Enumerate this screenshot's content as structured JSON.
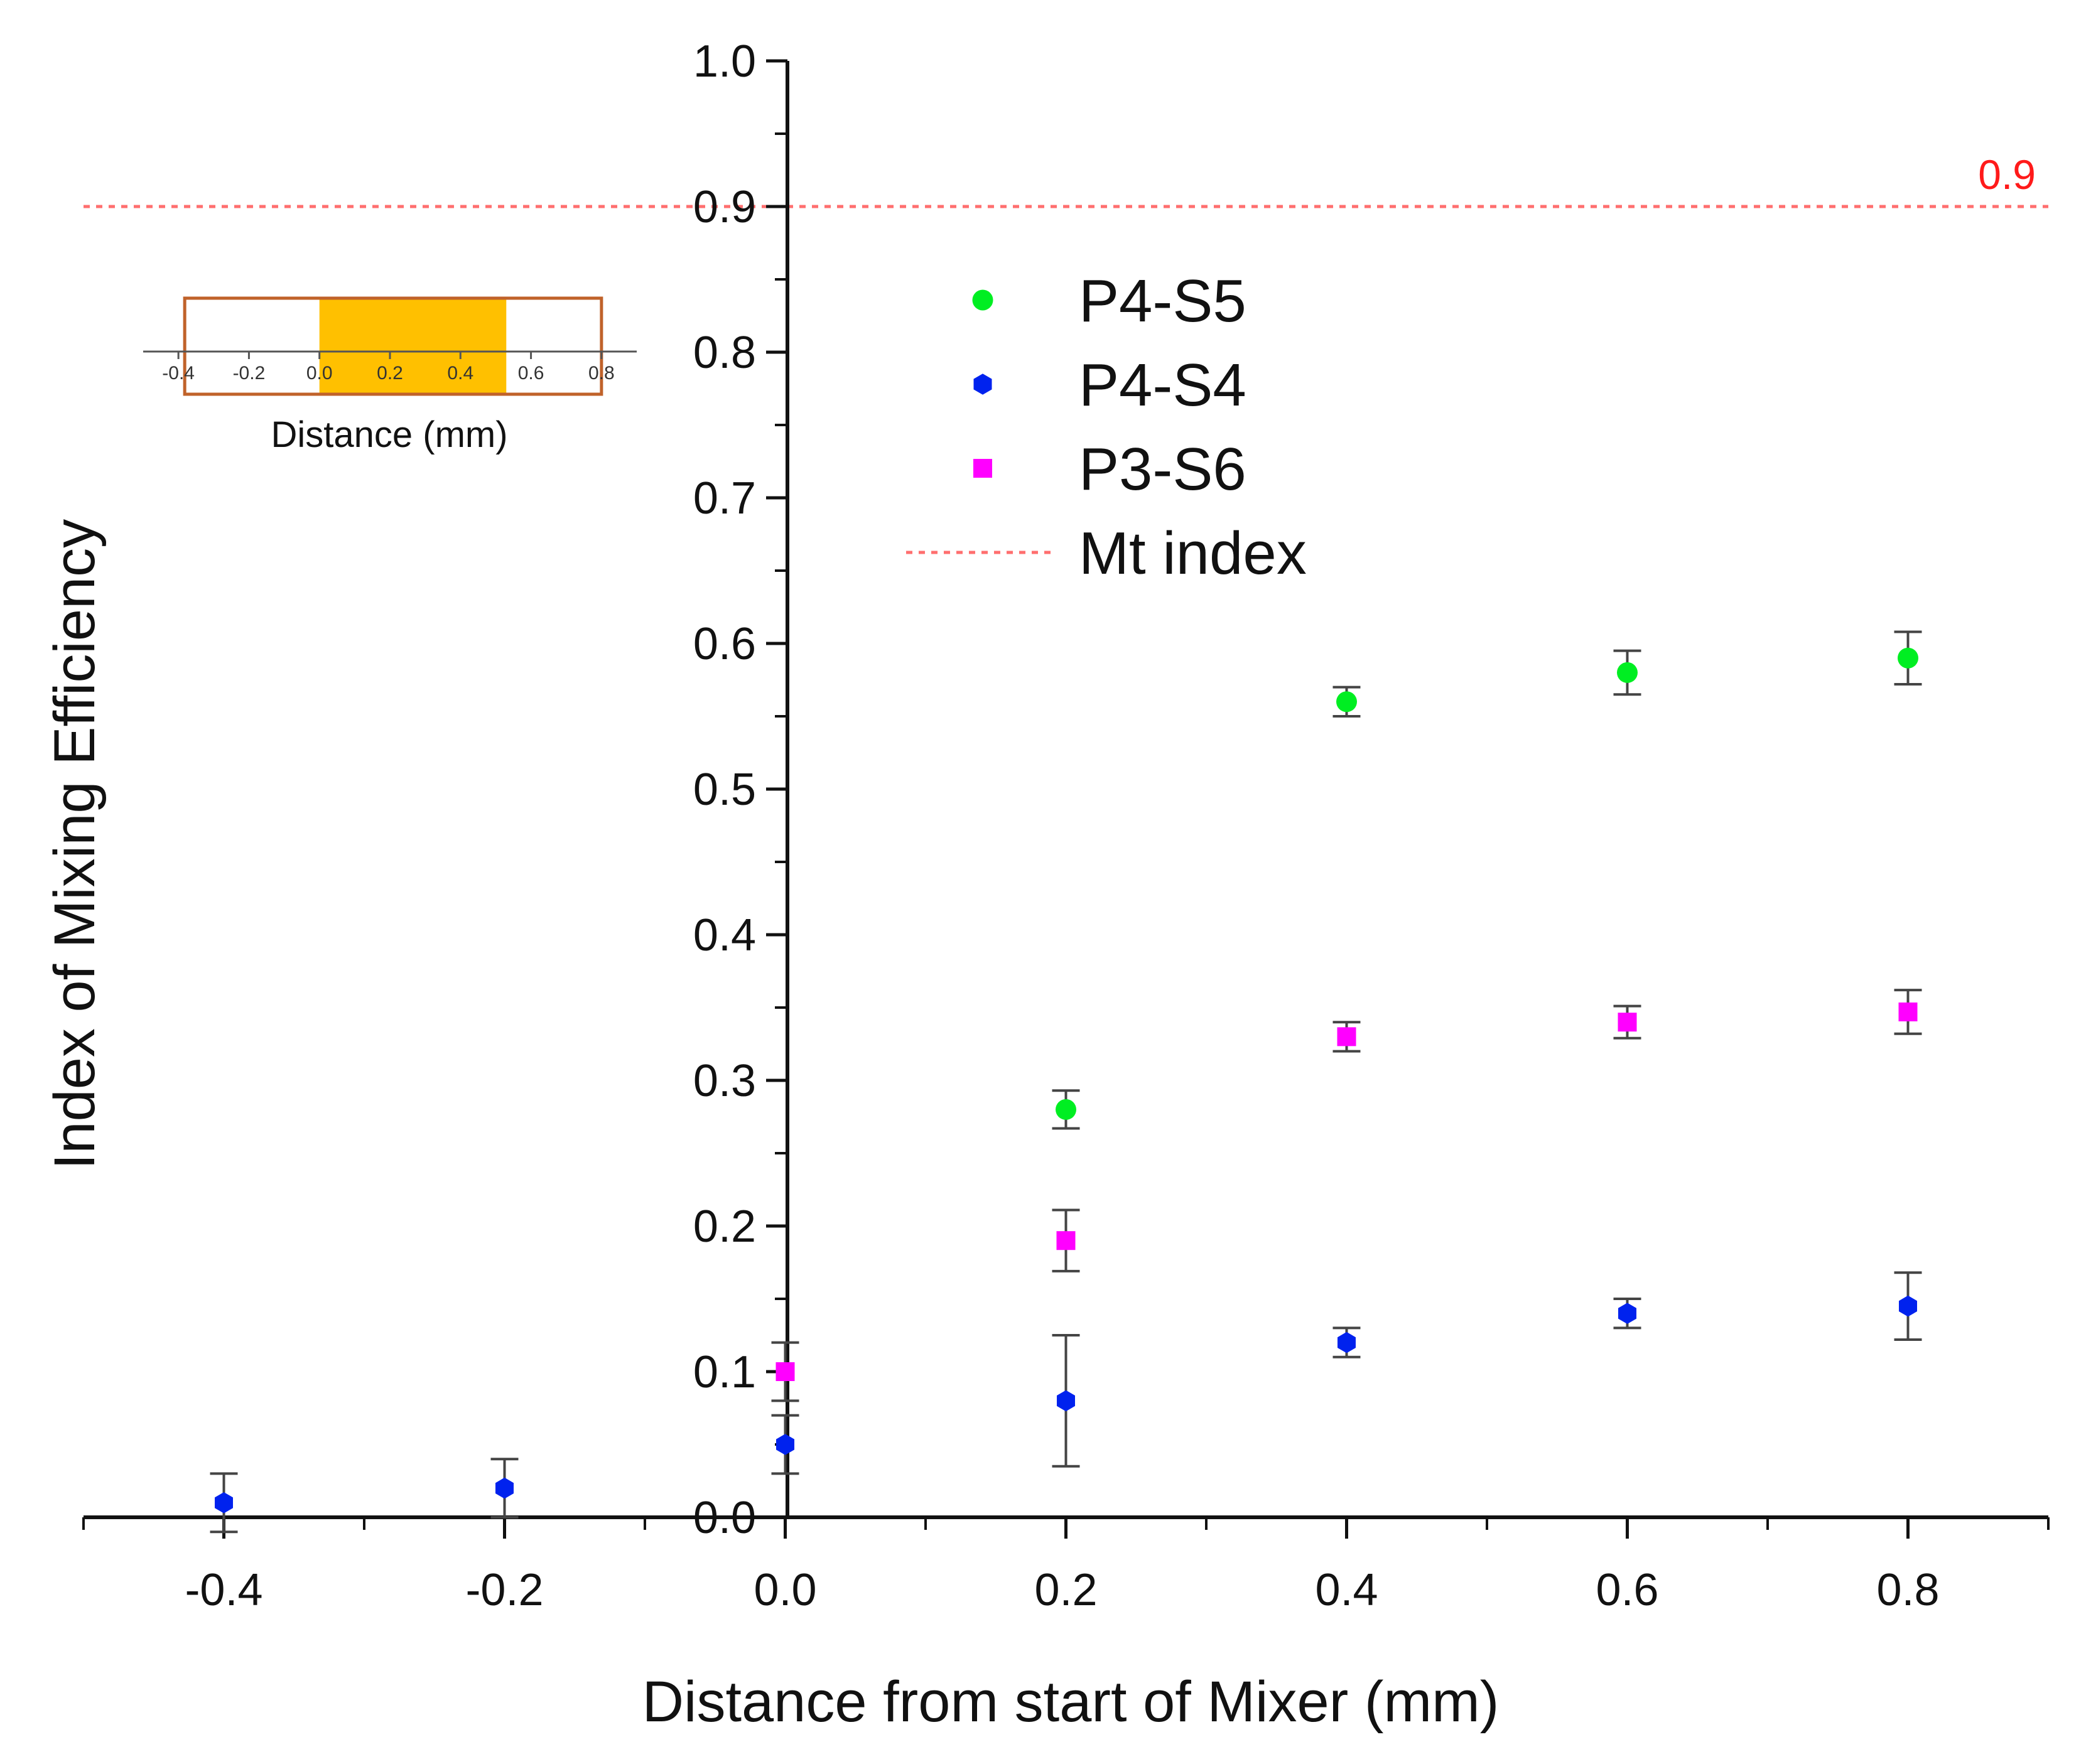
{
  "chart_data": {
    "type": "scatter",
    "title": "",
    "xlabel": "Distance from start of Mixer (mm)",
    "ylabel": "Index of Mixing Efficiency",
    "xlim": [
      -0.5,
      0.9
    ],
    "ylim": [
      0.0,
      1.0
    ],
    "x_ticks": [
      "-0.4",
      "-0.2",
      "0.0",
      "0.2",
      "0.4",
      "0.6",
      "0.8"
    ],
    "x_tick_values": [
      -0.4,
      -0.2,
      0.0,
      0.2,
      0.4,
      0.6,
      0.8
    ],
    "y_ticks": [
      "0.0",
      "0.1",
      "0.2",
      "0.3",
      "0.4",
      "0.5",
      "0.6",
      "0.7",
      "0.8",
      "0.9",
      "1.0"
    ],
    "y_tick_values": [
      0.0,
      0.1,
      0.2,
      0.3,
      0.4,
      0.5,
      0.6,
      0.7,
      0.8,
      0.9,
      1.0
    ],
    "grid": false,
    "legend_position": "upper-center",
    "series": [
      {
        "name": "P4-S5",
        "marker": "circle",
        "color": "#00ee22",
        "x": [
          0.2,
          0.4,
          0.6,
          0.8
        ],
        "y": [
          0.28,
          0.56,
          0.58,
          0.59
        ],
        "err": [
          0.013,
          0.01,
          0.015,
          0.018
        ]
      },
      {
        "name": "P4-S4",
        "marker": "hexagon",
        "color": "#0022ee",
        "x": [
          -0.4,
          -0.2,
          0.0,
          0.2,
          0.4,
          0.6,
          0.8
        ],
        "y": [
          0.01,
          0.02,
          0.05,
          0.08,
          0.12,
          0.14,
          0.145
        ],
        "err": [
          0.02,
          0.02,
          0.02,
          0.045,
          0.01,
          0.01,
          0.023
        ]
      },
      {
        "name": "P3-S6",
        "marker": "square",
        "color": "#ff00ff",
        "x": [
          0.0,
          0.2,
          0.4,
          0.6,
          0.8
        ],
        "y": [
          0.1,
          0.19,
          0.33,
          0.34,
          0.347
        ],
        "err": [
          0.02,
          0.021,
          0.01,
          0.011,
          0.015
        ]
      }
    ],
    "reference_line": {
      "name": "Mt index",
      "value": 0.9,
      "label": "0.9",
      "color": "#ff6f6f",
      "label_color": "#ff1a1a"
    },
    "inset": {
      "xlabel": "Distance (mm)",
      "ticks": [
        "-0.4",
        "-0.2",
        "0.0",
        "0.2",
        "0.4",
        "0.6",
        "0.8"
      ],
      "tick_values": [
        -0.4,
        -0.2,
        0.0,
        0.2,
        0.4,
        0.6,
        0.8
      ],
      "range": [
        -0.5,
        0.9
      ],
      "box_range": [
        -0.4,
        0.8
      ],
      "highlight_range": [
        0.0,
        0.53
      ],
      "highlight_color": "#ffc000",
      "box_color": "#c0622a"
    }
  }
}
